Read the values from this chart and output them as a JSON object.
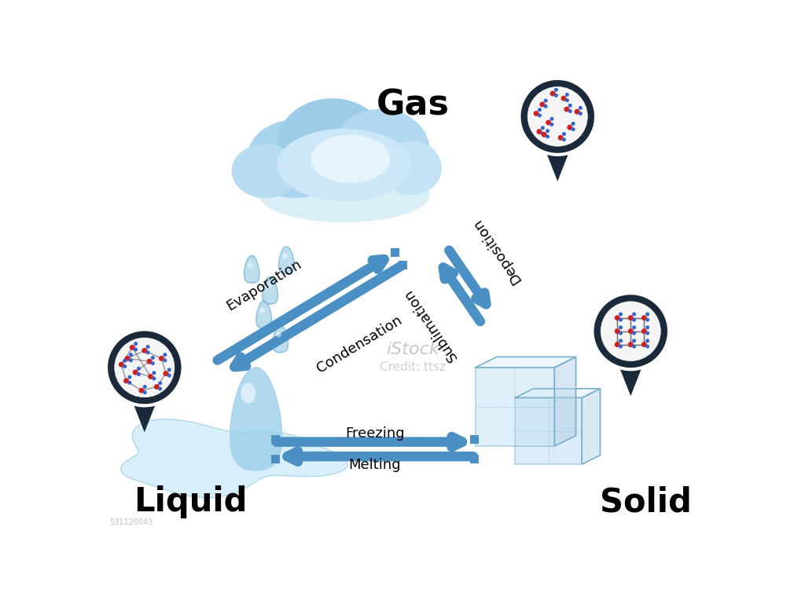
{
  "bg_color": "#ffffff",
  "title_gas": "Gas",
  "title_liquid": "Liquid",
  "title_solid": "Solid",
  "arrow_color": "#4a90c4",
  "dark_navy": "#1b2a3b",
  "label_evaporation": "Evaporation",
  "label_condensation": "Condensation",
  "label_deposition": "Deposition",
  "label_sublimation": "Sublimation",
  "label_freezing": "Freezing",
  "label_melting": "Melting",
  "cloud_base": "#b8ddf0",
  "cloud_light": "#daeef8",
  "cloud_mid": "#8ec8e8",
  "rain_color": "#7ab8d8",
  "water_drop_color": "#88c4e0",
  "puddle_color": "#c8e8f5",
  "ice_color": "#d0eaf8",
  "ice_edge": "#88b8d0"
}
